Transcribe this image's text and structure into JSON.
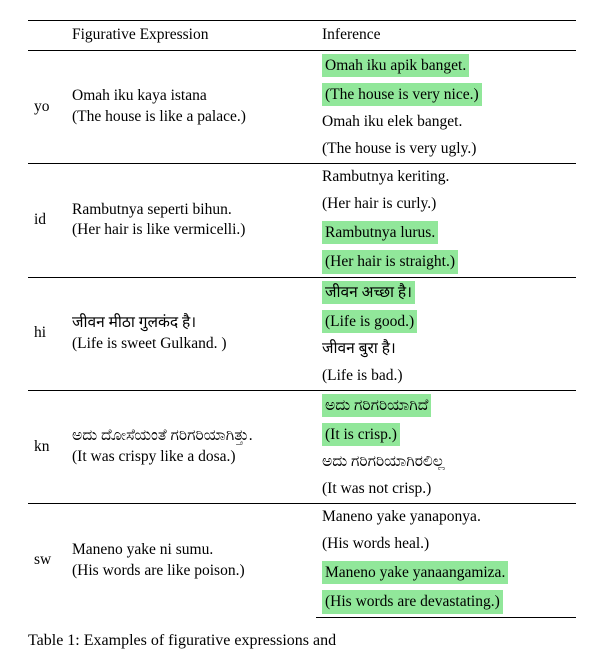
{
  "header": {
    "col1": "Figurative Expression",
    "col2": "Inference"
  },
  "highlight_color": "#91e79a",
  "text_color": "#000000",
  "background_color": "#ffffff",
  "font_family": "Times New Roman",
  "font_size_pt": 11,
  "rows": [
    {
      "code": "yo",
      "expr_native": "Omah iku kaya istana",
      "expr_gloss": "(The house is like a palace.)",
      "inf1_native": "Omah iku apik banget.",
      "inf1_gloss": "(The house is very nice.)",
      "inf1_hl": true,
      "inf2_native": "Omah iku elek banget.",
      "inf2_gloss": "(The house is very ugly.)",
      "inf2_hl": false
    },
    {
      "code": "id",
      "expr_native": "Rambutnya seperti bihun.",
      "expr_gloss": "(Her hair is like vermicelli.)",
      "inf1_native": "Rambutnya keriting.",
      "inf1_gloss": "(Her hair is curly.)",
      "inf1_hl": false,
      "inf2_native": "Rambutnya lurus.",
      "inf2_gloss": "(Her hair is straight.)",
      "inf2_hl": true
    },
    {
      "code": "hi",
      "expr_native": "जीवन मीठा गुलकंद है।",
      "expr_gloss": "(Life is sweet Gulkand. )",
      "inf1_native": " जीवन अच्छा है।",
      "inf1_gloss": "(Life is good.)",
      "inf1_hl": true,
      "inf2_native": "जीवन बुरा है।",
      "inf2_gloss": "(Life is bad.)",
      "inf2_hl": false
    },
    {
      "code": "kn",
      "expr_native": "ಅದು ದೋಸೆಯಂತೆ ಗರಿಗರಿಯಾಗಿತ್ತು.",
      "expr_gloss": "(It was crispy like a dosa.)",
      "inf1_native": " ಅದು ಗರಿಗರಿಯಾಗಿದೆ",
      "inf1_gloss": "(It is crisp.)",
      "inf1_hl": true,
      "inf2_native": "ಅದು ಗರಿಗರಿಯಾಗಿರಲಿಲ್ಲ",
      "inf2_gloss": "(It was not crisp.)",
      "inf2_hl": false
    },
    {
      "code": "sw",
      "expr_native": "Maneno yake ni sumu.",
      "expr_gloss": "(His words are like poison.)",
      "inf1_native": "Maneno yake yanaponya.",
      "inf1_gloss": "(His words heal.)",
      "inf1_hl": false,
      "inf2_native": "Maneno yake yanaangamiza.",
      "inf2_gloss": "(His words are devastating.)",
      "inf2_hl": true
    }
  ],
  "caption_prefix": "Table 1: Examples of figurative expressions and"
}
